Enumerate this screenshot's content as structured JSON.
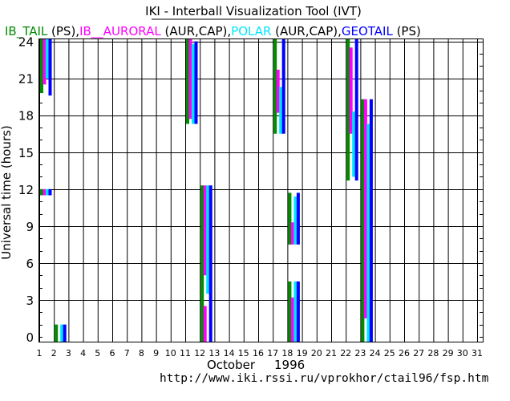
{
  "chart_data": {
    "type": "bar",
    "title": "IKI - Interball Visualization Tool (IVT)",
    "legend": [
      {
        "name": "IB_TAIL",
        "suffix": " (PS),",
        "color": "#008b00"
      },
      {
        "name": "IB__AURORAL",
        "suffix": " (AUR,CAP),",
        "color": "#ff00ff"
      },
      {
        "name": "POLAR",
        "suffix": " (AUR,CAP),",
        "color": "#00e5ff"
      },
      {
        "name": "GEOTAIL",
        "suffix": " (PS)",
        "color": "#0000ff"
      }
    ],
    "ylabel": "Universal time  (hours)",
    "xlabel_month": "October",
    "xlabel_year": "1996",
    "footer_url": "http://www.iki.rssi.ru/vprokhor/ctail96/fsp.htm",
    "ylim": [
      0,
      24
    ],
    "yticks": [
      "0",
      "3",
      "6",
      "9",
      "12",
      "15",
      "18",
      "21",
      "24"
    ],
    "xticks": [
      "1",
      "2",
      "3",
      "4",
      "5",
      "6",
      "7",
      "8",
      "9",
      "10",
      "11",
      "12",
      "13",
      "14",
      "15",
      "16",
      "17",
      "18",
      "19",
      "20",
      "21",
      "22",
      "23",
      "24",
      "25",
      "26",
      "27",
      "28",
      "29",
      "30",
      "31"
    ],
    "grid": true,
    "series": [
      {
        "name": "IB_TAIL",
        "segments": [
          {
            "day": 1,
            "start": 19.8,
            "end": 24.5
          },
          {
            "day": 1,
            "start": 11.5,
            "end": 12.0
          },
          {
            "day": 2,
            "start": -0.5,
            "end": 1.0
          },
          {
            "day": 11,
            "start": 17.3,
            "end": 24.5
          },
          {
            "day": 12,
            "start": -0.5,
            "end": 12.3
          },
          {
            "day": 17,
            "start": 16.5,
            "end": 24.5
          },
          {
            "day": 18,
            "start": 7.5,
            "end": 11.7
          },
          {
            "day": 18,
            "start": -0.5,
            "end": 4.5
          },
          {
            "day": 22,
            "start": 12.7,
            "end": 24.5
          },
          {
            "day": 23,
            "start": -0.5,
            "end": 19.3
          }
        ]
      },
      {
        "name": "IB__AURORAL",
        "segments": [
          {
            "day": 1,
            "start": 20.5,
            "end": 24.5
          },
          {
            "day": 1,
            "start": 11.5,
            "end": 12.0
          },
          {
            "day": 11,
            "start": 17.7,
            "end": 24.5
          },
          {
            "day": 12,
            "start": 5.0,
            "end": 12.3
          },
          {
            "day": 12,
            "start": -0.5,
            "end": 2.5
          },
          {
            "day": 17,
            "start": 18.2,
            "end": 21.7
          },
          {
            "day": 18,
            "start": 7.5,
            "end": 9.3
          },
          {
            "day": 18,
            "start": -0.5,
            "end": 3.2
          },
          {
            "day": 22,
            "start": 16.5,
            "end": 23.5
          },
          {
            "day": 23,
            "start": 1.5,
            "end": 19.3
          }
        ]
      },
      {
        "name": "POLAR",
        "segments": [
          {
            "day": 1,
            "start": 21.0,
            "end": 24.5
          },
          {
            "day": 1,
            "start": 11.5,
            "end": 12.0
          },
          {
            "day": 2,
            "start": -0.5,
            "end": 1.0
          },
          {
            "day": 11,
            "start": 17.3,
            "end": 23.8
          },
          {
            "day": 12,
            "start": 3.5,
            "end": 12.3
          },
          {
            "day": 17,
            "start": 16.5,
            "end": 20.3
          },
          {
            "day": 18,
            "start": 7.5,
            "end": 11.4
          },
          {
            "day": 18,
            "start": -0.5,
            "end": 4.5
          },
          {
            "day": 22,
            "start": 13.0,
            "end": 18.3
          },
          {
            "day": 23,
            "start": -0.5,
            "end": 17.3
          }
        ]
      },
      {
        "name": "GEOTAIL",
        "segments": [
          {
            "day": 1,
            "start": 19.6,
            "end": 24.5
          },
          {
            "day": 1,
            "start": 11.5,
            "end": 12.0
          },
          {
            "day": 2,
            "start": -0.5,
            "end": 1.0
          },
          {
            "day": 11,
            "start": 17.3,
            "end": 24.0
          },
          {
            "day": 12,
            "start": -0.5,
            "end": 12.3
          },
          {
            "day": 17,
            "start": 16.5,
            "end": 24.5
          },
          {
            "day": 18,
            "start": 7.5,
            "end": 11.7
          },
          {
            "day": 18,
            "start": -0.5,
            "end": 4.5
          },
          {
            "day": 22,
            "start": 12.7,
            "end": 24.5
          },
          {
            "day": 23,
            "start": -0.5,
            "end": 19.3
          }
        ]
      }
    ]
  }
}
